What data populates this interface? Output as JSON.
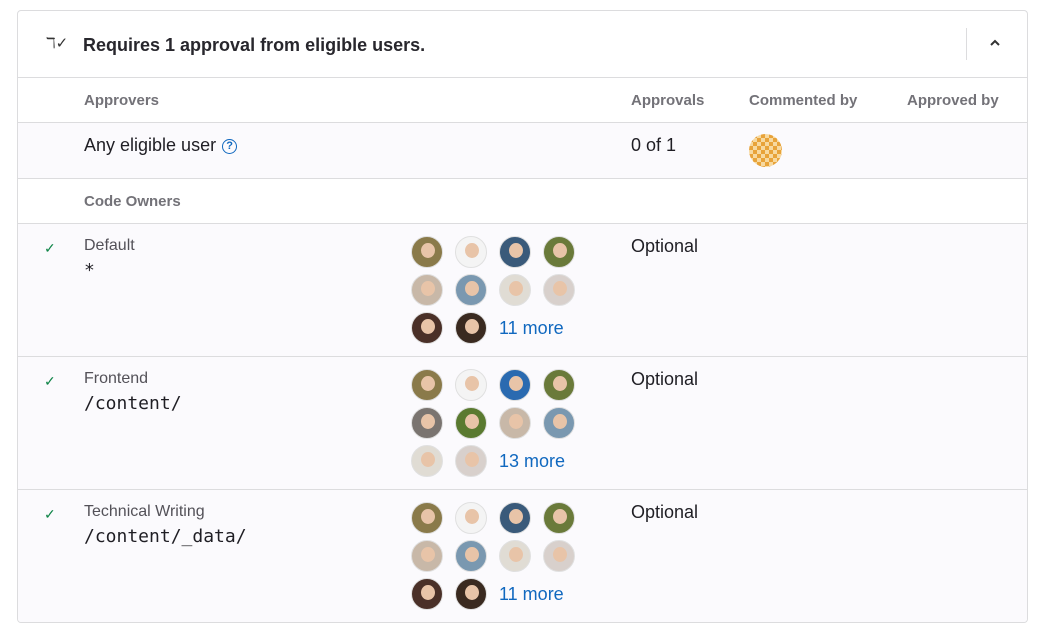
{
  "header": {
    "icon": "approval-user-icon",
    "title": "Requires 1 approval from eligible users.",
    "collapse_icon": "chevron-up-icon"
  },
  "columns": {
    "approvers": "Approvers",
    "approvals": "Approvals",
    "commented_by": "Commented by",
    "approved_by": "Approved by"
  },
  "any_eligible": {
    "label": "Any eligible user",
    "help_icon": "question-circle-icon",
    "approvals": "0 of 1",
    "commenter_avatar_color": "#e8a33a"
  },
  "code_owners_label": "Code Owners",
  "rules": [
    {
      "name": "Default",
      "path": "*",
      "approvals": "Optional",
      "more": "11 more",
      "avatars": [
        "#8a7a4a",
        "#f4f4f4",
        "#3a5a7a",
        "#6a7a3a",
        "#c8b8a8",
        "#7a98b0",
        "#e0dcd4",
        "#d8d0cc",
        "#4a3028",
        "#3a2a20"
      ]
    },
    {
      "name": "Frontend",
      "path": "/content/",
      "approvals": "Optional",
      "more": "13 more",
      "avatars": [
        "#8a7a4a",
        "#f4f4f4",
        "#2a6ab0",
        "#6a7a3a",
        "#7a7470",
        "#5a7a30",
        "#c8b8a8",
        "#7a98b0",
        "#e0dcd4",
        "#d8d0cc"
      ]
    },
    {
      "name": "Technical Writing",
      "path": "/content/_data/",
      "approvals": "Optional",
      "more": "11 more",
      "avatars": [
        "#8a7a4a",
        "#f4f4f4",
        "#3a5a7a",
        "#6a7a3a",
        "#c8b8a8",
        "#7a98b0",
        "#e0dcd4",
        "#d8d0cc",
        "#4a3028",
        "#3a2a20"
      ]
    }
  ]
}
